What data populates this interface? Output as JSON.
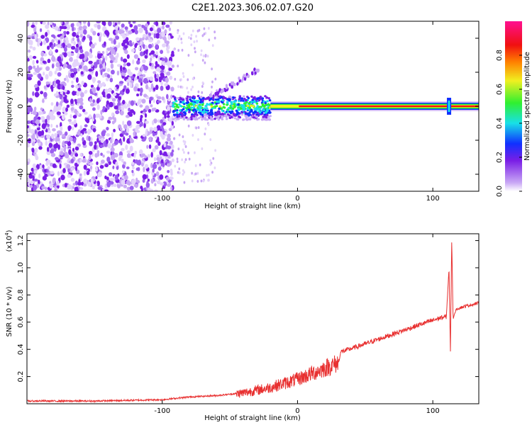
{
  "chart_data": [
    {
      "type": "heatmap",
      "title": "C2E1.2023.306.02.07.G20",
      "xlabel": "Height of straight line (km)",
      "ylabel": "Frequency (Hz)",
      "xlim": [
        -200,
        134
      ],
      "ylim": [
        -50,
        50
      ],
      "x_ticks": [
        -100,
        0,
        100
      ],
      "y_ticks": [
        40,
        20,
        0,
        -20,
        -40
      ],
      "x_tick_labels": [
        "-100",
        "0",
        "100"
      ],
      "y_tick_labels": [
        "40",
        "20",
        "0",
        "-20",
        "-40"
      ],
      "colorbar": {
        "label": "Normalized spectral amplitude",
        "range": [
          0,
          1
        ],
        "ticks": [
          0.0,
          0.2,
          0.4,
          0.6,
          0.8
        ],
        "tick_labels": [
          "0.0",
          "0.2",
          "0.4",
          "0.6",
          "0.8"
        ],
        "colormap": [
          "#ffffff",
          "#c9a8f5",
          "#7a1ee6",
          "#1030ff",
          "#18e0e8",
          "#30f030",
          "#f0f020",
          "#ff8000",
          "#f01010",
          "#ff1090"
        ]
      },
      "regions": [
        {
          "x": [
            -200,
            -92
          ],
          "y": [
            -50,
            50
          ],
          "level": 0.12,
          "note_color": "#7a1ee6"
        },
        {
          "x": [
            -92,
            -20
          ],
          "y": [
            -8,
            6
          ],
          "level": 0.35
        },
        {
          "x": [
            -20,
            134
          ],
          "y": [
            -2,
            2
          ],
          "level": 0.85
        },
        {
          "x": [
            -65,
            -28
          ],
          "y": [
            5,
            22
          ],
          "level": 0.12
        }
      ],
      "grid": false
    },
    {
      "type": "line",
      "xlabel": "Height of straight line (km)",
      "ylabel": "SNR (10 * v/v)",
      "scale_label": "(x10",
      "scale_exp": "4",
      "scale_close": ")",
      "xlim": [
        -200,
        134
      ],
      "ylim": [
        0,
        1.25
      ],
      "x_ticks": [
        -100,
        0,
        100
      ],
      "y_ticks": [
        0.2,
        0.4,
        0.6,
        0.8,
        1.0,
        1.2
      ],
      "x_tick_labels": [
        "-100",
        "0",
        "100"
      ],
      "y_tick_labels": [
        "0.2",
        "0.4",
        "0.6",
        "0.8",
        "1.0",
        "1.2"
      ],
      "line_color": "#e83030",
      "series": [
        {
          "x": [
            -200,
            -150,
            -100,
            -80,
            -60,
            -40,
            -20,
            0,
            20,
            30,
            32,
            50,
            70,
            90,
            105,
            110,
            112,
            113,
            114,
            115,
            116,
            118,
            125,
            134
          ],
          "y": [
            0.02,
            0.02,
            0.03,
            0.05,
            0.06,
            0.08,
            0.12,
            0.18,
            0.26,
            0.3,
            0.38,
            0.44,
            0.51,
            0.58,
            0.63,
            0.64,
            1.0,
            0.38,
            1.22,
            0.62,
            0.66,
            0.7,
            0.72,
            0.74
          ]
        }
      ],
      "grid": false
    }
  ]
}
